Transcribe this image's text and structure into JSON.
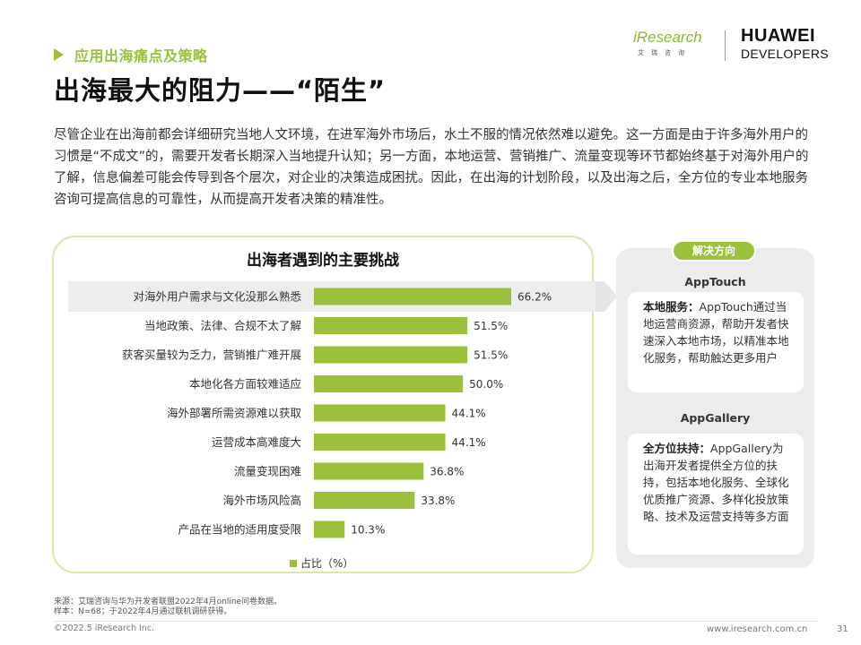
{
  "header": {
    "section": "应用出海痛点及策略",
    "title": "出海最大的阻力——“陌生”",
    "logo_iresearch": "iResearch",
    "logo_iresearch_sub": "艾瑞咨询",
    "logo_huawei_line1": "HUAWEI",
    "logo_huawei_line2": "DEVELOPERS"
  },
  "intro": "尽管企业在出海前都会详细研究当地人文环境，在进军海外市场后，水土不服的情况依然难以避免。这一方面是由于许多海外用户的习惯是“不成文”的，需要开发者长期深入当地提升认知；另一方面，本地运营、营销推广、流量变现等环节都始终基于对海外用户的了解，信息偏差可能会传导到各个层次，对企业的决策造成困扰。因此，在出海的计划阶段，以及出海之后，全方位的专业本地服务咨询可提高信息的可靠性，从而提高开发者决策的精准性。",
  "chart_data": {
    "type": "bar",
    "orientation": "horizontal",
    "title": "出海者遇到的主要挑战",
    "categories": [
      "对海外用户需求与文化没那么熟悉",
      "当地政策、法律、合规不太了解",
      "获客买量较为乏力，营销推广难开展",
      "本地化各方面较难适应",
      "海外部署所需资源难以获取",
      "运营成本高难度大",
      "流量变现困难",
      "海外市场风险高",
      "产品在当地的适用度受限"
    ],
    "values": [
      66.2,
      51.5,
      51.5,
      50.0,
      44.1,
      44.1,
      36.8,
      33.8,
      10.3
    ],
    "labels": [
      "66.2%",
      "51.5%",
      "51.5%",
      "50.0%",
      "44.1%",
      "44.1%",
      "36.8%",
      "33.8%",
      "10.3%"
    ],
    "legend": [
      "占比（%）"
    ],
    "bar_color": "#9bc13c",
    "xlim": [
      0,
      66.2
    ]
  },
  "solutions": {
    "badge": "解决方向",
    "items": [
      {
        "name": "AppTouch",
        "lead": "本地服务：",
        "text": "AppTouch通过当地运营商资源，帮助开发者快速深入本地市场，以精准本地化服务，帮助触达更多用户"
      },
      {
        "name": "AppGallery",
        "lead": "全方位扶持：",
        "text": "AppGallery为出海开发者提供全方位的扶持，包括本地化服务、全球化优质推广资源、多样化投放策略、技术及运营支持等多方面"
      }
    ]
  },
  "footer": {
    "source": "来源：艾瑞咨询与华为开发者联盟2022年4月online问卷数据。",
    "sample": "样本：N=68；于2022年4月通过联机调研获得。",
    "copyright": "©2022.5 iResearch Inc.",
    "site": "www.iresearch.com.cn",
    "page": "31"
  },
  "colors": {
    "accent": "#9bc13c",
    "card_border": "#d6e8a6",
    "panel_bg": "#ececec"
  }
}
